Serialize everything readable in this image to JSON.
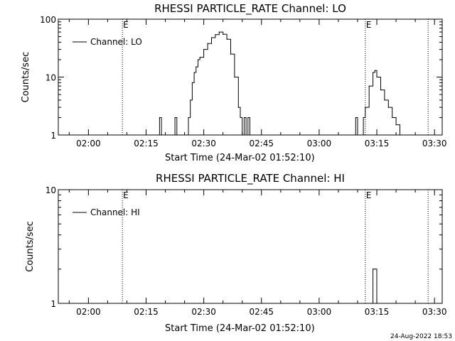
{
  "chart_data": [
    {
      "type": "line",
      "title": "RHESSI PARTICLE_RATE Channel: LO",
      "xlabel": "Start Time (24-Mar-02 01:52:10)",
      "ylabel": "Counts/sec",
      "yscale": "log",
      "ylim": [
        1,
        100
      ],
      "y_tick_labels": [
        "1",
        "10",
        "100"
      ],
      "xlim": [
        "01:52:10",
        "03:32:00"
      ],
      "x_tick_labels": [
        "02:00",
        "02:15",
        "02:30",
        "02:45",
        "03:00",
        "03:15",
        "03:30"
      ],
      "legend_position": "top-left",
      "series": [
        {
          "name": "Channel: LO",
          "x": [
            "02:18",
            "02:18:30",
            "02:19",
            "02:22",
            "02:22:30",
            "02:23",
            "02:25:30",
            "02:26",
            "02:26:30",
            "02:27",
            "02:27:30",
            "02:28",
            "02:28:30",
            "02:29",
            "02:30",
            "02:31",
            "02:32",
            "02:33",
            "02:34",
            "02:35",
            "02:36",
            "02:37",
            "02:38",
            "02:39",
            "02:39:30",
            "02:40",
            "02:40:30",
            "02:41",
            "02:41:30",
            "02:42",
            "03:09",
            "03:09:30",
            "03:10",
            "03:11",
            "03:11:30",
            "03:12",
            "03:13",
            "03:14",
            "03:14:30",
            "03:15",
            "03:16",
            "03:17",
            "03:18",
            "03:19",
            "03:20",
            "03:21"
          ],
          "values": [
            1,
            2,
            1,
            1,
            2,
            1,
            1,
            2,
            4,
            8,
            12,
            15,
            20,
            22,
            30,
            38,
            48,
            54,
            60,
            55,
            45,
            25,
            10,
            3,
            2,
            1,
            2,
            1,
            2,
            1,
            1,
            2,
            1,
            1,
            2,
            3,
            7,
            12,
            13,
            10,
            6,
            4,
            3,
            2,
            1.5,
            1
          ]
        }
      ],
      "markers": [
        {
          "x": "02:08:50",
          "style": "dotted",
          "label": "E"
        },
        {
          "x": "03:12",
          "style": "dotted",
          "label": "E"
        },
        {
          "x": "03:28:20",
          "style": "dotted",
          "label": ""
        }
      ]
    },
    {
      "type": "line",
      "title": "RHESSI PARTICLE_RATE Channel: HI",
      "xlabel": "Start Time (24-Mar-02 01:52:10)",
      "ylabel": "Counts/sec",
      "yscale": "log",
      "ylim": [
        1,
        10
      ],
      "y_tick_labels": [
        "1",
        "10"
      ],
      "xlim": [
        "01:52:10",
        "03:32:00"
      ],
      "x_tick_labels": [
        "02:00",
        "02:15",
        "02:30",
        "02:45",
        "03:00",
        "03:15",
        "03:30"
      ],
      "legend_position": "top-left",
      "series": [
        {
          "name": "Channel: HI",
          "x": [
            "03:13:30",
            "03:14",
            "03:14:30",
            "03:15"
          ],
          "values": [
            1,
            2,
            2,
            1
          ]
        }
      ],
      "markers": [
        {
          "x": "02:08:50",
          "style": "dotted",
          "label": "E"
        },
        {
          "x": "03:12",
          "style": "dotted",
          "label": "E"
        },
        {
          "x": "03:28:20",
          "style": "dotted",
          "label": ""
        }
      ]
    }
  ],
  "footer_date": "24-Aug-2022 18:53"
}
